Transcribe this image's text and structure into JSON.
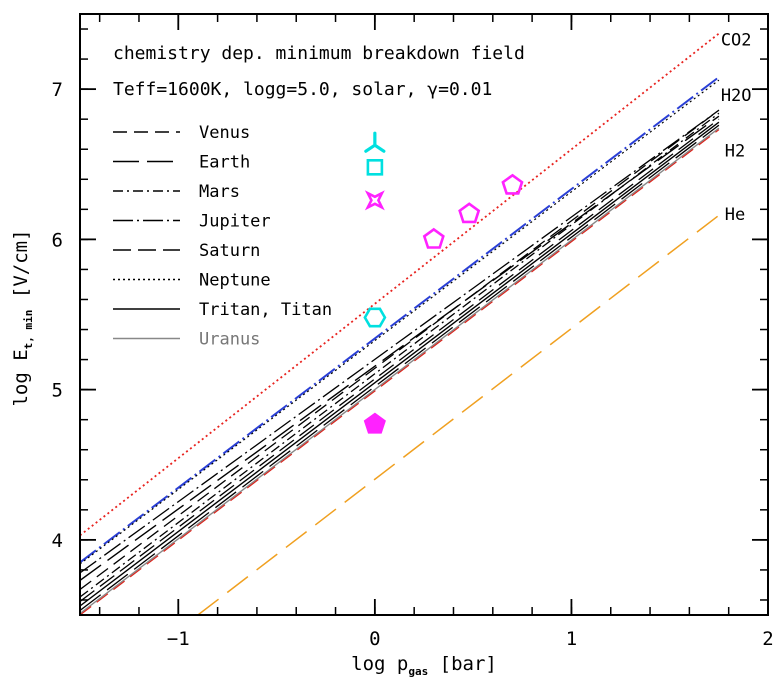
{
  "chart_data": {
    "type": "line",
    "xlabel": {
      "main": "log p",
      "sub": "gas",
      "tail": " [bar]"
    },
    "ylabel": {
      "main": "log E",
      "sub": "t, min",
      "tail": " [V/cm]"
    },
    "xlim": [
      -1.5,
      2.0
    ],
    "ylim": [
      3.5,
      7.5
    ],
    "xticks": [
      -1,
      0,
      1,
      2
    ],
    "xtick_labels": [
      "−1",
      "0",
      "1",
      "2"
    ],
    "yticks": [
      4,
      5,
      6,
      7
    ],
    "ytick_labels": [
      "4",
      "5",
      "6",
      "7"
    ],
    "grid": false,
    "annotations": [
      "chemistry dep. minimum breakdown field",
      "Teff=1600K,   logg=5.0, solar, γ=0.01"
    ],
    "legend_placement": "upper-left",
    "legend": [
      {
        "label": "Venus",
        "dash": "14,7",
        "color": "#000000",
        "width": 1.4
      },
      {
        "label": "Earth",
        "dash": "26,8",
        "color": "#000000",
        "width": 1.4
      },
      {
        "label": "Mars",
        "dash": "10,4,2,4",
        "color": "#000000",
        "width": 1.4
      },
      {
        "label": "Jupiter",
        "dash": "20,4,2,4",
        "color": "#000000",
        "width": 1.4
      },
      {
        "label": "Saturn",
        "dash": "18,7",
        "color": "#000000",
        "width": 1.4
      },
      {
        "label": "Neptune",
        "dash": "2,3",
        "color": "#000000",
        "width": 1.4
      },
      {
        "label": "Tritan, Titan",
        "dash": "",
        "color": "#000000",
        "width": 1.6
      },
      {
        "label": "Uranus",
        "dash": "",
        "color": "#888888",
        "width": 1.6,
        "label_color": "#777777"
      }
    ],
    "series": [
      {
        "label": "CO2",
        "x": [
          -1.5,
          1.75
        ],
        "y": [
          4.03,
          7.37
        ],
        "color": "#e8231f",
        "dash": "2,3",
        "width": 1.8
      },
      {
        "label": "H2O",
        "x": [
          -1.5,
          1.75
        ],
        "y": [
          3.85,
          7.08
        ],
        "color": "#2a3fd6",
        "dash": "20,4,2,4",
        "width": 2.0
      },
      {
        "x": [
          -1.5,
          1.75
        ],
        "y": [
          3.84,
          7.06
        ],
        "color": "#000000",
        "dash": "2,3",
        "width": 1.2
      },
      {
        "x": [
          -1.5,
          1.75
        ],
        "y": [
          3.78,
          6.86
        ],
        "color": "#000000",
        "dash": "20,4,2,4",
        "width": 1.3
      },
      {
        "x": [
          -1.5,
          1.75
        ],
        "y": [
          3.73,
          6.82
        ],
        "color": "#000000",
        "dash": "26,8",
        "width": 1.4
      },
      {
        "x": [
          -1.5,
          1.75
        ],
        "y": [
          3.67,
          6.86
        ],
        "color": "#000000",
        "dash": "14,7",
        "width": 1.3
      },
      {
        "x": [
          -1.5,
          1.75
        ],
        "y": [
          3.62,
          6.84
        ],
        "color": "#000000",
        "dash": "10,4,2,4",
        "width": 1.3
      },
      {
        "x": [
          -1.5,
          1.75
        ],
        "y": [
          3.59,
          6.8
        ],
        "color": "#000000",
        "dash": "18,7",
        "width": 1.3
      },
      {
        "x": [
          -1.5,
          1.75
        ],
        "y": [
          3.56,
          6.78
        ],
        "color": "#000000",
        "dash": "",
        "width": 1.4
      },
      {
        "label": "H2",
        "x": [
          -1.5,
          1.75
        ],
        "y": [
          3.53,
          6.76
        ],
        "color": "#000000",
        "dash": "26,8",
        "width": 1.3
      },
      {
        "x": [
          -1.5,
          1.75
        ],
        "y": [
          3.51,
          6.74
        ],
        "color": "#888888",
        "dash": "",
        "width": 1.4
      },
      {
        "x": [
          -1.5,
          1.75
        ],
        "y": [
          3.5,
          6.73
        ],
        "color": "#d9251d",
        "dash": "14,7",
        "width": 1.2
      },
      {
        "label": "He",
        "x": [
          -0.9,
          1.75
        ],
        "y": [
          3.5,
          6.16
        ],
        "color": "#f0a020",
        "dash": "26,11",
        "width": 1.5
      }
    ],
    "line_labels": [
      {
        "text": "CO2",
        "x": 1.76,
        "y": 7.33
      },
      {
        "text": "H2O",
        "x": 1.76,
        "y": 6.96
      },
      {
        "text": "H2",
        "x": 1.78,
        "y": 6.59
      },
      {
        "text": "He",
        "x": 1.78,
        "y": 6.17
      }
    ],
    "markers": [
      {
        "shape": "tripod",
        "x": 0.0,
        "y": 6.64,
        "color": "#00e0e0",
        "fill": false
      },
      {
        "shape": "square",
        "x": 0.0,
        "y": 6.48,
        "color": "#00e0e0",
        "fill": false
      },
      {
        "shape": "star4",
        "x": 0.0,
        "y": 6.26,
        "color": "#ff22ff",
        "fill": false
      },
      {
        "shape": "pentagon",
        "x": 0.3,
        "y": 6.0,
        "color": "#ff22ff",
        "fill": false
      },
      {
        "shape": "pentagon",
        "x": 0.48,
        "y": 6.17,
        "color": "#ff22ff",
        "fill": false
      },
      {
        "shape": "pentagon",
        "x": 0.7,
        "y": 6.36,
        "color": "#ff22ff",
        "fill": false
      },
      {
        "shape": "hexagon",
        "x": 0.0,
        "y": 5.48,
        "color": "#00e0e0",
        "fill": false
      },
      {
        "shape": "pentagon",
        "x": 0.0,
        "y": 4.77,
        "color": "#ff22ff",
        "fill": true
      }
    ]
  }
}
